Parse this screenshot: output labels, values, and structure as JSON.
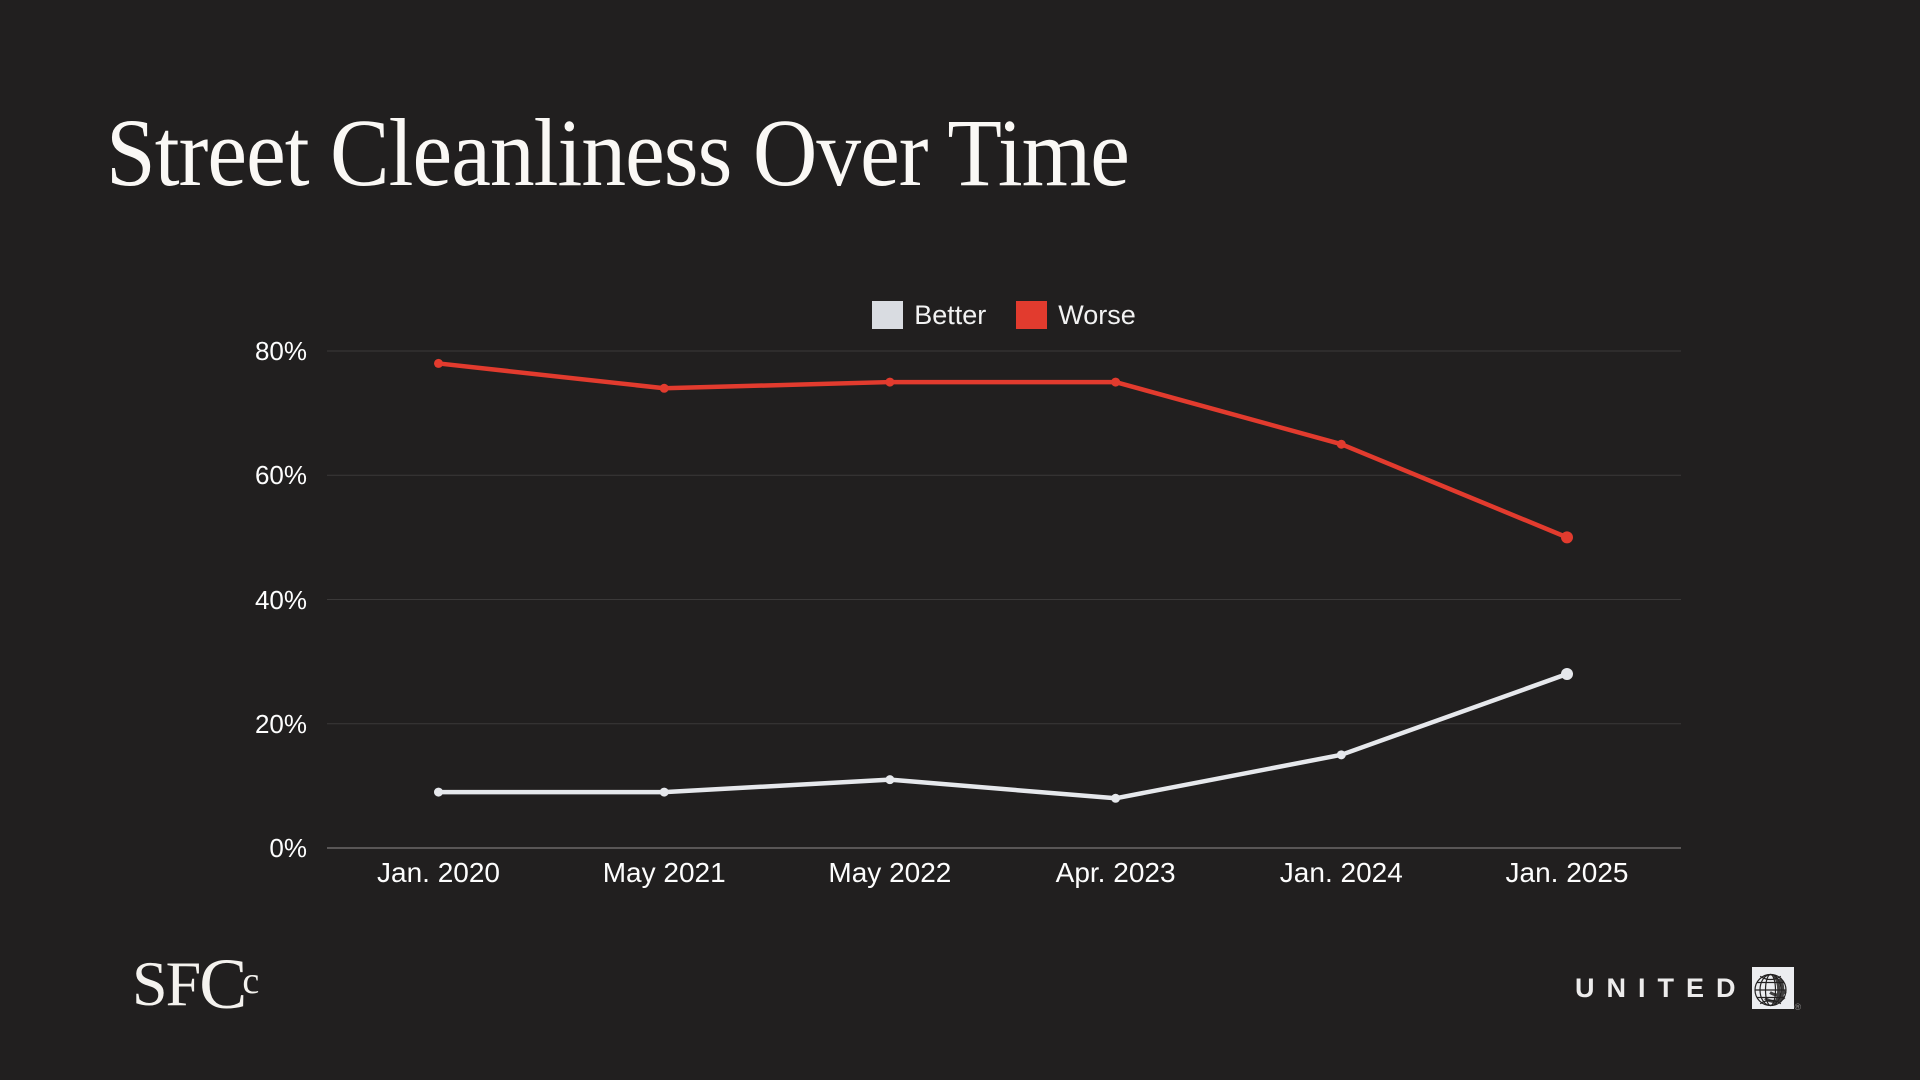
{
  "page": {
    "background": "#211f1f"
  },
  "title": "Street Cleanliness Over Time",
  "legend": {
    "position": "top-center",
    "items": [
      {
        "label": "Better",
        "color": "#d9dce1"
      },
      {
        "label": "Worse",
        "color": "#e23b2e"
      }
    ]
  },
  "chart_data": {
    "type": "line",
    "title": "Street Cleanliness Over Time",
    "categories": [
      "Jan. 2020",
      "May 2021",
      "May 2022",
      "Apr. 2023",
      "Jan. 2024",
      "Jan. 2025"
    ],
    "series": [
      {
        "name": "Better",
        "color": "#e6e8ec",
        "values": [
          9,
          9,
          11,
          8,
          15,
          28
        ]
      },
      {
        "name": "Worse",
        "color": "#e23b2e",
        "values": [
          78,
          74,
          75,
          75,
          65,
          50
        ]
      }
    ],
    "y_ticks": [
      0,
      20,
      40,
      60,
      80
    ],
    "y_tick_labels": [
      "0%",
      "20%",
      "40%",
      "60%",
      "80%"
    ],
    "ylim": [
      0,
      80
    ],
    "grid": true,
    "legend_position": "top-center",
    "colors": {
      "background": "#211f1f",
      "gridline": "#3b3939",
      "axis_line": "#595656",
      "tick_text": "#fdfdfd"
    }
  },
  "footer": {
    "sfc_logo": {
      "part_sf": "SF",
      "part_big_c": "C",
      "part_small_c": "c"
    },
    "united_logo": {
      "text": "UNITED",
      "registered_mark": "®"
    }
  }
}
